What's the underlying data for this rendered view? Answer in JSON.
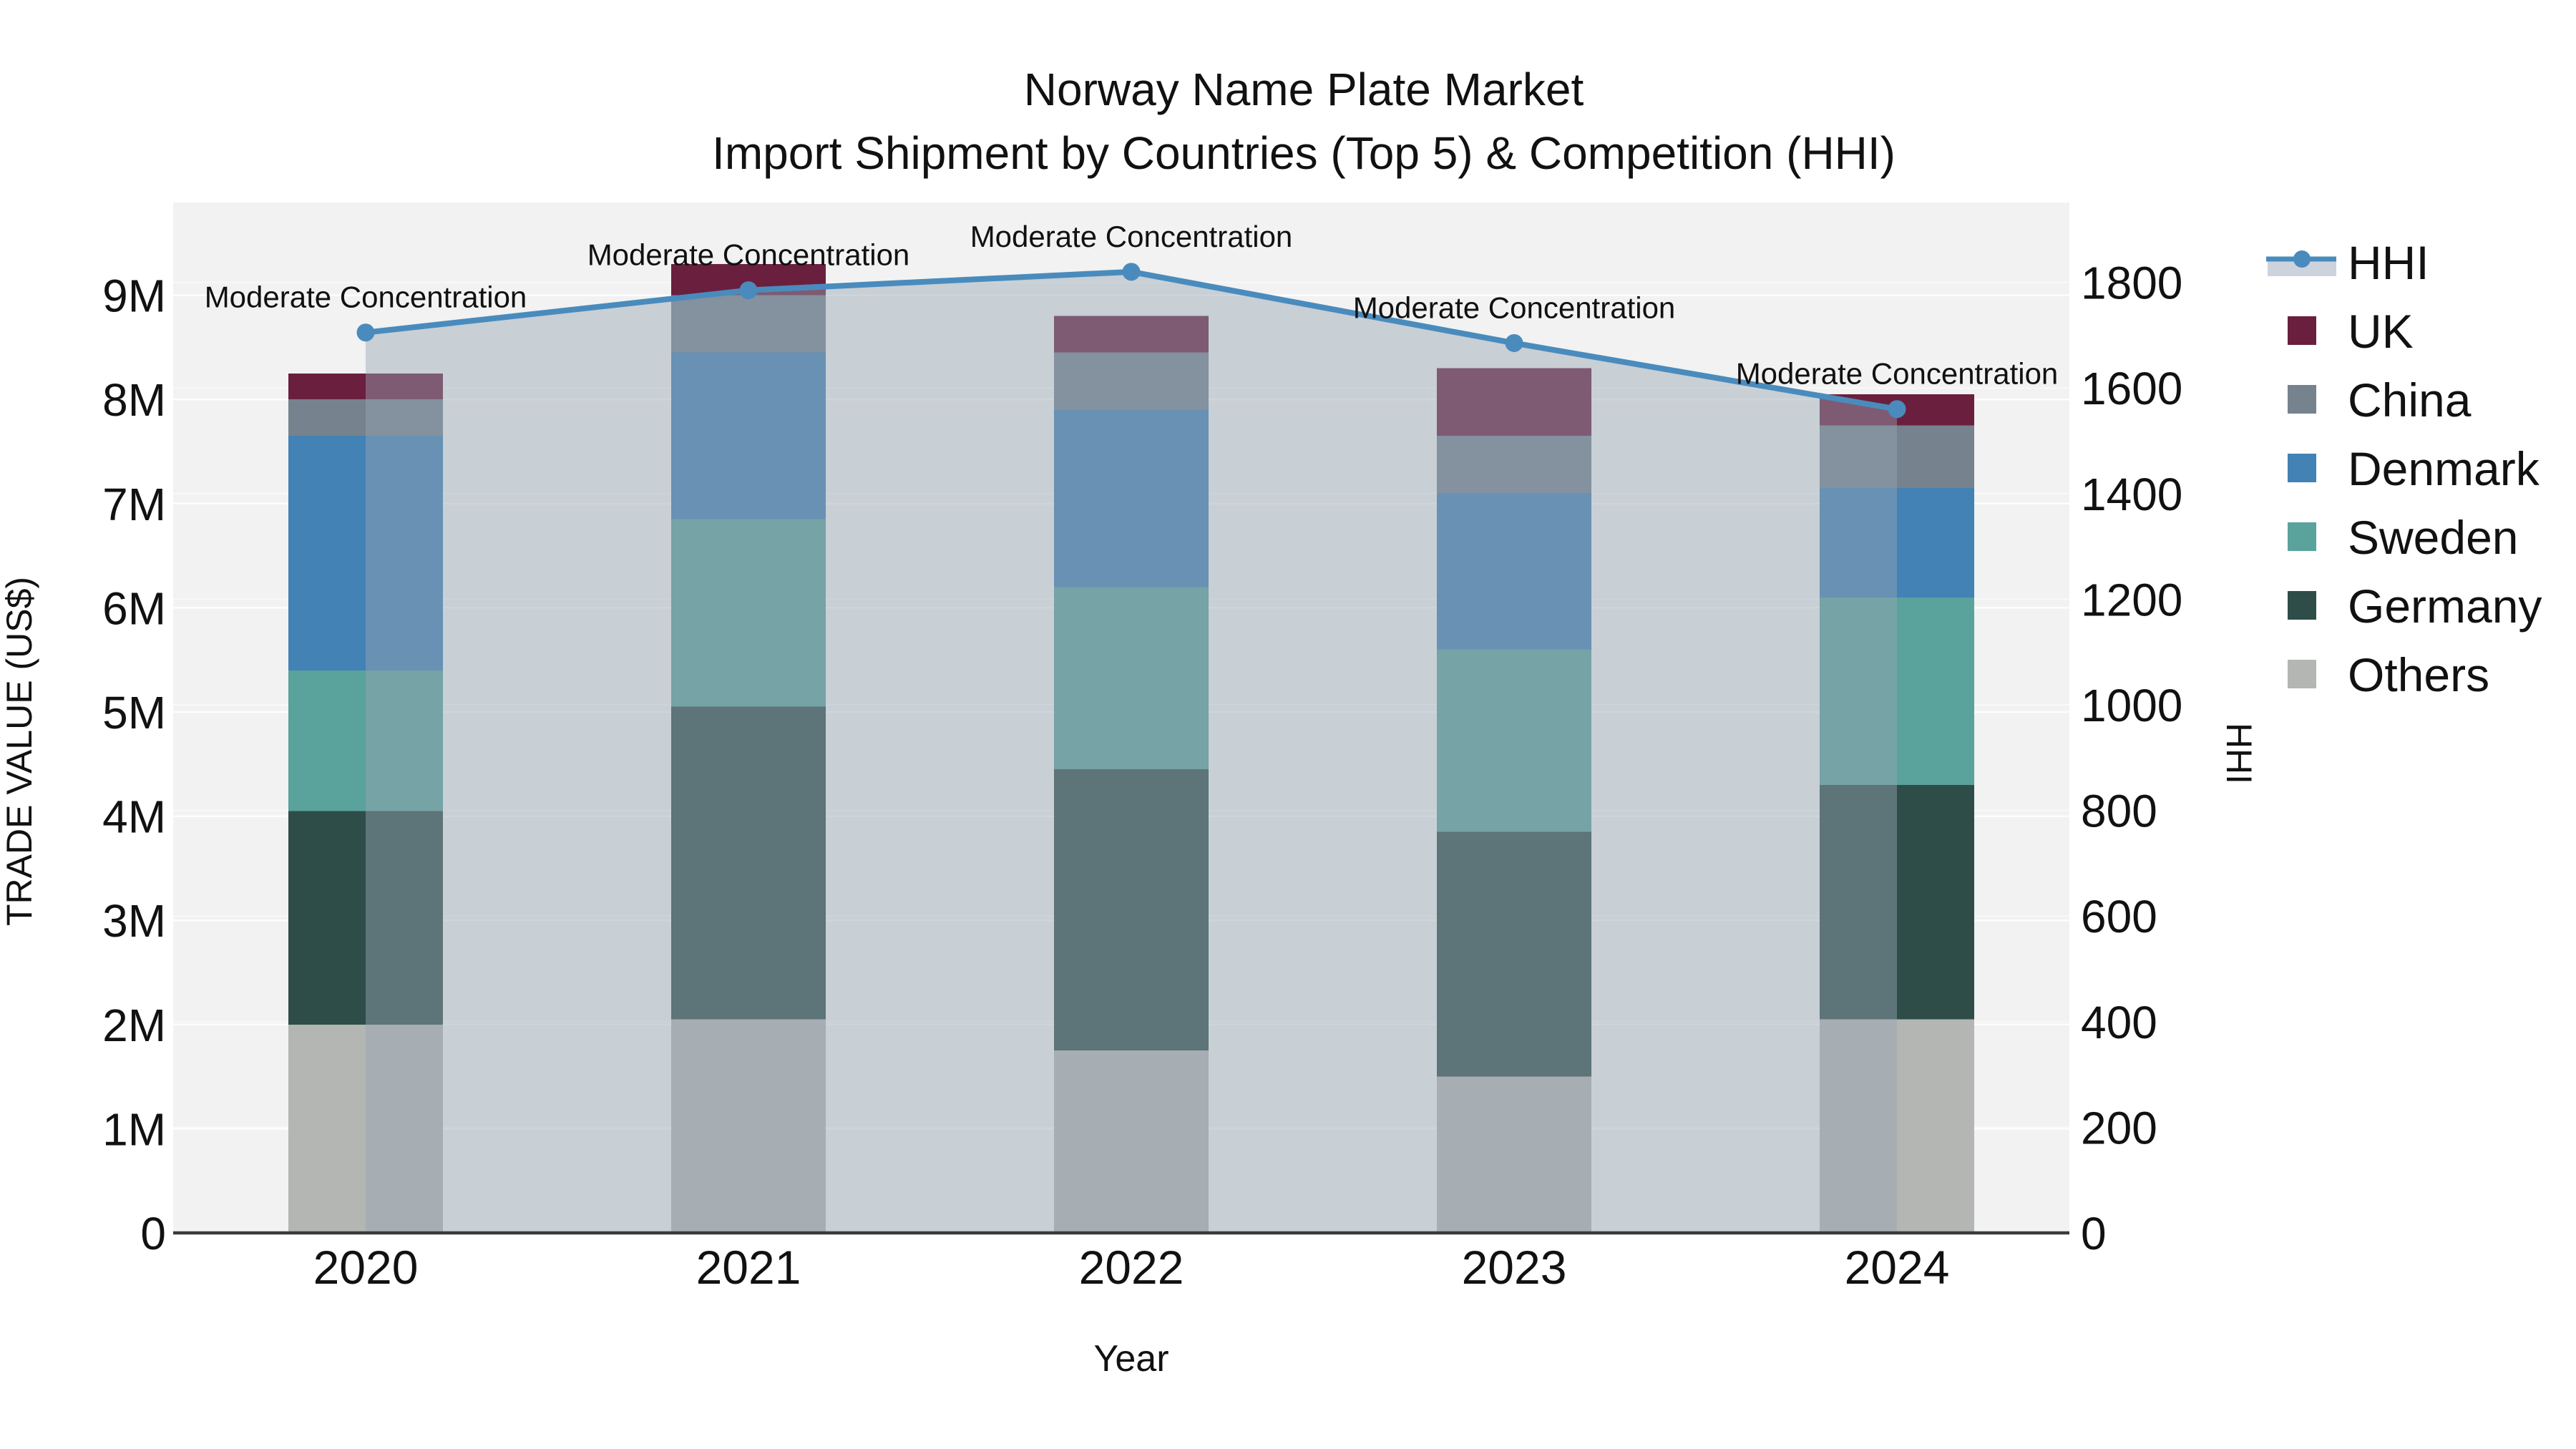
{
  "chart_data": {
    "type": "bar",
    "subtype": "stacked-bar-with-line-overlay",
    "title": "Norway Name Plate Market",
    "subtitle": "Import Shipment by Countries (Top 5) & Competition (HHI)",
    "xlabel": "Year",
    "ylabel_left": "TRADE VALUE (US$)",
    "ylabel_right": "HHI",
    "categories": [
      "2020",
      "2021",
      "2022",
      "2023",
      "2024"
    ],
    "value_unit": "M US$",
    "series": [
      {
        "name": "Others",
        "color": "#b3b6b2",
        "values": [
          2.0,
          2.05,
          1.75,
          1.5,
          2.05
        ]
      },
      {
        "name": "Germany",
        "color": "#2e4d48",
        "values": [
          2.05,
          3.0,
          2.7,
          2.35,
          2.25
        ]
      },
      {
        "name": "Sweden",
        "color": "#5aa29c",
        "values": [
          1.35,
          1.8,
          1.75,
          1.75,
          1.8
        ]
      },
      {
        "name": "Denmark",
        "color": "#4282b5",
        "values": [
          2.25,
          1.6,
          1.7,
          1.5,
          1.05
        ]
      },
      {
        "name": "China",
        "color": "#76828e",
        "values": [
          0.35,
          0.55,
          0.55,
          0.55,
          0.6
        ]
      },
      {
        "name": "UK",
        "color": "#6b1f3e",
        "values": [
          0.25,
          0.3,
          0.35,
          0.65,
          0.3
        ]
      }
    ],
    "bar_totals": [
      8.25,
      9.3,
      8.8,
      8.3,
      8.05
    ],
    "line_overlay": {
      "name": "HHI",
      "values": [
        1705,
        1785,
        1820,
        1685,
        1560
      ],
      "line_color": "#4a8bbd",
      "marker_color": "#4a8bbd",
      "area_fill_color": "rgba(150,163,180,0.45)",
      "axis": "right"
    },
    "annotations": [
      {
        "category": "2020",
        "text": "Moderate Concentration"
      },
      {
        "category": "2021",
        "text": "Moderate Concentration"
      },
      {
        "category": "2022",
        "text": "Moderate Concentration"
      },
      {
        "category": "2023",
        "text": "Moderate Concentration"
      },
      {
        "category": "2024",
        "text": "Moderate Concentration"
      }
    ],
    "axes": {
      "left": {
        "tick_labels": [
          "0",
          "1M",
          "2M",
          "3M",
          "4M",
          "5M",
          "6M",
          "7M",
          "8M",
          "9M"
        ],
        "tick_values": [
          0,
          1,
          2,
          3,
          4,
          5,
          6,
          7,
          8,
          9
        ],
        "range": [
          0,
          9.89
        ]
      },
      "right": {
        "tick_labels": [
          "0",
          "200",
          "400",
          "600",
          "800",
          "1000",
          "1200",
          "1400",
          "1600",
          "1800"
        ],
        "tick_values": [
          0,
          200,
          400,
          600,
          800,
          1000,
          1200,
          1400,
          1600,
          1800
        ],
        "range": [
          0,
          1951
        ]
      },
      "grid": true
    },
    "legend": {
      "position": "right",
      "entries": [
        "HHI",
        "UK",
        "China",
        "Denmark",
        "Sweden",
        "Germany",
        "Others"
      ]
    },
    "colors": {
      "plot_background": "#f1f2f1",
      "gridline": "#ffffff",
      "axis_line": "#3a3a3a",
      "text": "#111111",
      "hhi_legend_band": "#ccd3dd"
    }
  }
}
